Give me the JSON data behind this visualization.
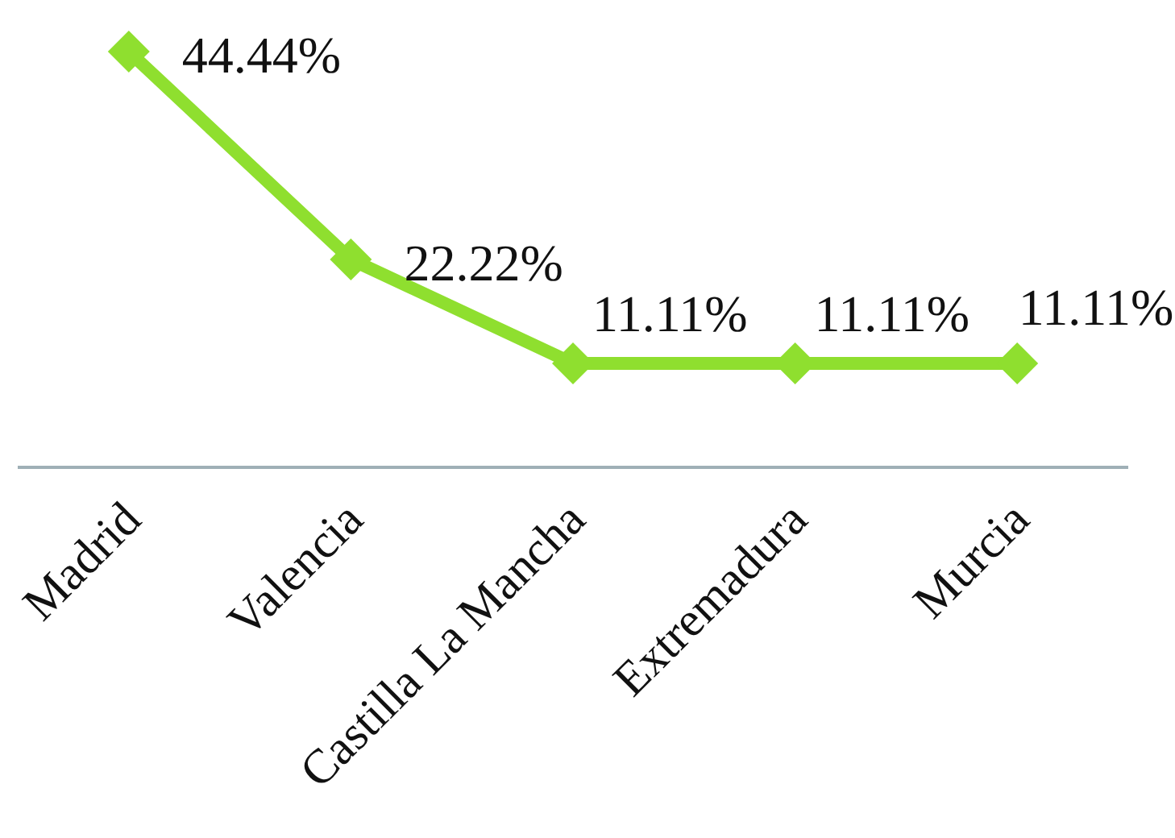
{
  "chart_data": {
    "type": "line",
    "categories": [
      "Madrid",
      "Valencia",
      "Castilla La Mancha",
      "Extremadura",
      "Murcia"
    ],
    "series": [
      {
        "color": "#8fdf2f",
        "values": [
          44.44,
          22.22,
          11.11,
          11.11,
          11.11
        ],
        "value_labels": [
          "44.44%",
          "22.22%",
          "11.11%",
          "11.11%",
          "11.11%"
        ]
      }
    ],
    "marker": "diamond",
    "line_style": "solid",
    "tick_labels": "x"
  }
}
